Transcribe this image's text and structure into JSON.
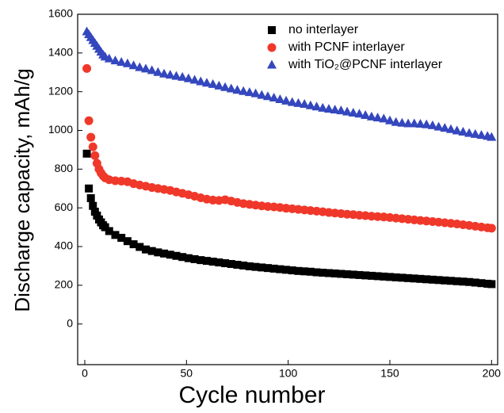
{
  "chart_data": {
    "type": "scatter",
    "xlabel": "Cycle number",
    "ylabel": "Discharge capacity, mAh/g",
    "x": [
      1,
      2,
      3,
      4,
      5,
      6,
      7,
      8,
      9,
      10,
      12,
      15,
      18,
      21,
      24,
      27,
      30,
      33,
      36,
      39,
      42,
      45,
      48,
      51,
      54,
      57,
      60,
      63,
      66,
      69,
      72,
      75,
      78,
      81,
      84,
      87,
      90,
      93,
      96,
      99,
      102,
      105,
      108,
      111,
      114,
      117,
      120,
      123,
      126,
      129,
      132,
      135,
      138,
      141,
      144,
      147,
      150,
      153,
      156,
      159,
      162,
      165,
      168,
      171,
      174,
      177,
      180,
      183,
      186,
      189,
      192,
      195,
      198,
      200
    ],
    "series": [
      {
        "name": "no interlayer",
        "color": "#000000",
        "marker": "square",
        "values": [
          880,
          700,
          650,
          610,
          580,
          560,
          540,
          525,
          510,
          500,
          480,
          460,
          445,
          428,
          412,
          398,
          385,
          377,
          370,
          364,
          358,
          352,
          346,
          340,
          335,
          330,
          326,
          322,
          318,
          314,
          310,
          306,
          302,
          298,
          295,
          292,
          289,
          286,
          283,
          280,
          277,
          274,
          272,
          270,
          267,
          265,
          263,
          261,
          259,
          257,
          255,
          253,
          251,
          249,
          247,
          245,
          243,
          241,
          239,
          237,
          235,
          233,
          231,
          229,
          227,
          225,
          223,
          221,
          219,
          217,
          214,
          211,
          208,
          206
        ]
      },
      {
        "name": "with PCNF interlayer",
        "color": "#f0382a",
        "marker": "circle",
        "values": [
          1320,
          1050,
          965,
          915,
          870,
          830,
          800,
          780,
          765,
          755,
          745,
          740,
          738,
          735,
          725,
          718,
          712,
          705,
          700,
          695,
          690,
          682,
          675,
          668,
          660,
          652,
          645,
          640,
          638,
          642,
          635,
          628,
          622,
          618,
          614,
          610,
          607,
          605,
          602,
          598,
          595,
          592,
          589,
          586,
          583,
          580,
          576,
          573,
          570,
          567,
          565,
          562,
          560,
          557,
          555,
          553,
          550,
          547,
          544,
          541,
          538,
          535,
          532,
          529,
          526,
          523,
          520,
          517,
          513,
          509,
          505,
          501,
          497,
          495
        ]
      },
      {
        "name": "with TiO₂@PCNF interlayer",
        "color": "#3447be",
        "marker": "triangle",
        "values": [
          1510,
          1495,
          1480,
          1465,
          1450,
          1435,
          1420,
          1405,
          1390,
          1380,
          1370,
          1360,
          1352,
          1345,
          1335,
          1325,
          1318,
          1310,
          1300,
          1292,
          1286,
          1280,
          1275,
          1268,
          1260,
          1252,
          1245,
          1238,
          1230,
          1222,
          1215,
          1208,
          1202,
          1196,
          1190,
          1182,
          1175,
          1168,
          1160,
          1152,
          1145,
          1140,
          1135,
          1128,
          1122,
          1115,
          1110,
          1106,
          1102,
          1096,
          1090,
          1085,
          1078,
          1070,
          1065,
          1060,
          1050,
          1042,
          1038,
          1035,
          1035,
          1033,
          1030,
          1025,
          1018,
          1012,
          1005,
          998,
          992,
          985,
          980,
          975,
          970,
          965
        ]
      }
    ],
    "xlim": [
      -3.5,
      203
    ],
    "xticks": [
      0,
      50,
      100,
      150,
      200
    ],
    "ylim": [
      -210,
      1600
    ],
    "yticks": [
      0,
      200,
      400,
      600,
      800,
      1000,
      1200,
      1400,
      1600
    ],
    "legend": "top-right",
    "grid": false
  }
}
